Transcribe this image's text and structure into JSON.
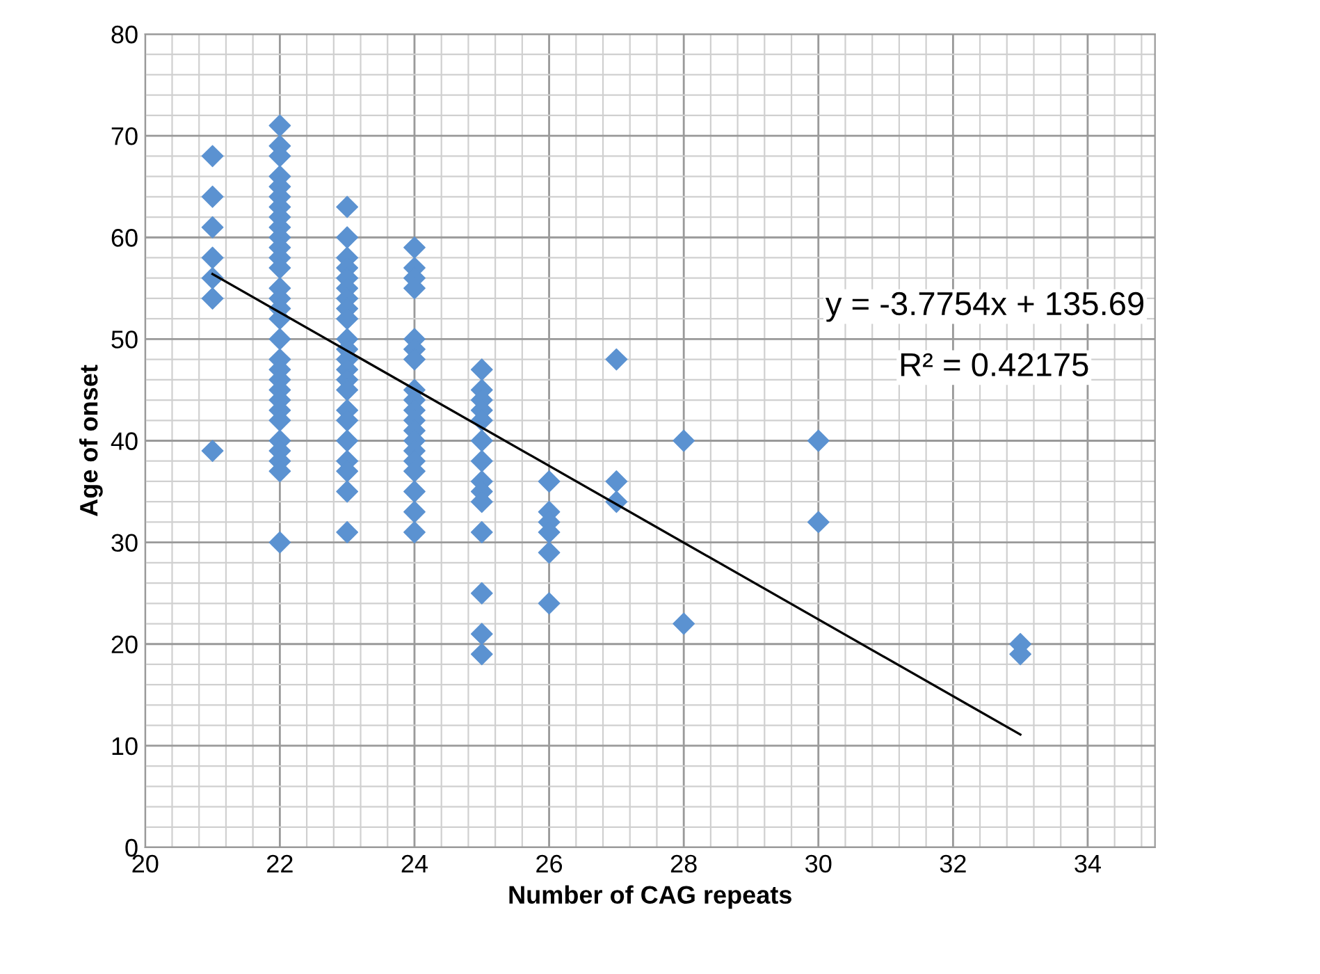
{
  "chart_data": {
    "type": "scatter",
    "xlabel": "Number of CAG repeats",
    "ylabel": "Age of onset",
    "xlim": [
      20,
      35
    ],
    "xticks": [
      20,
      22,
      24,
      26,
      28,
      30,
      32,
      34
    ],
    "ylim": [
      0,
      80
    ],
    "yticks": [
      0,
      10,
      20,
      30,
      40,
      50,
      60,
      70,
      80
    ],
    "grid": true,
    "legend": false,
    "marker": "diamond",
    "annotations": [
      "y = -3.7754x + 135.69",
      "R² = 0.42175"
    ],
    "series": [
      {
        "color": "#5b92d1",
        "x": [
          21,
          21,
          21,
          21,
          21,
          21,
          21,
          22,
          22,
          22,
          22,
          22,
          22,
          22,
          22,
          22,
          22,
          22,
          22,
          22,
          22,
          22,
          22,
          22,
          22,
          22,
          22,
          22,
          22,
          22,
          22,
          22,
          22,
          22,
          22,
          22,
          22,
          23,
          23,
          23,
          23,
          23,
          23,
          23,
          23,
          23,
          23,
          23,
          23,
          23,
          23,
          23,
          23,
          23,
          23,
          23,
          23,
          23,
          23,
          24,
          24,
          24,
          24,
          24,
          24,
          24,
          24,
          24,
          24,
          24,
          24,
          24,
          24,
          24,
          24,
          24,
          24,
          24,
          25,
          25,
          25,
          25,
          25,
          25,
          25,
          25,
          25,
          25,
          25,
          25,
          25,
          25,
          26,
          26,
          26,
          26,
          26,
          26,
          27,
          27,
          27,
          28,
          28,
          30,
          30,
          33,
          33
        ],
        "values": [
          68,
          64,
          61,
          58,
          56,
          54,
          39,
          71,
          69,
          68,
          66,
          65,
          64,
          63,
          62,
          61,
          60,
          59,
          58,
          57,
          55,
          54,
          53,
          52,
          50,
          48,
          47,
          46,
          45,
          44,
          43,
          42,
          40,
          39,
          38,
          37,
          30,
          63,
          60,
          58,
          57,
          56,
          55,
          54,
          53,
          52,
          50,
          49,
          48,
          47,
          46,
          45,
          43,
          42,
          40,
          38,
          37,
          35,
          31,
          59,
          57,
          56,
          55,
          50,
          49,
          48,
          45,
          44,
          43,
          42,
          41,
          40,
          39,
          38,
          37,
          35,
          33,
          31,
          47,
          45,
          44,
          43,
          42,
          40,
          38,
          36,
          35,
          34,
          31,
          25,
          21,
          19,
          36,
          33,
          32,
          31,
          29,
          24,
          48,
          36,
          34,
          40,
          22,
          40,
          32,
          20,
          19
        ]
      },
      {
        "type": "line",
        "color": "#000000",
        "marker": "none",
        "x": [
          21,
          33
        ],
        "values": [
          56.4,
          11.1
        ]
      }
    ]
  }
}
